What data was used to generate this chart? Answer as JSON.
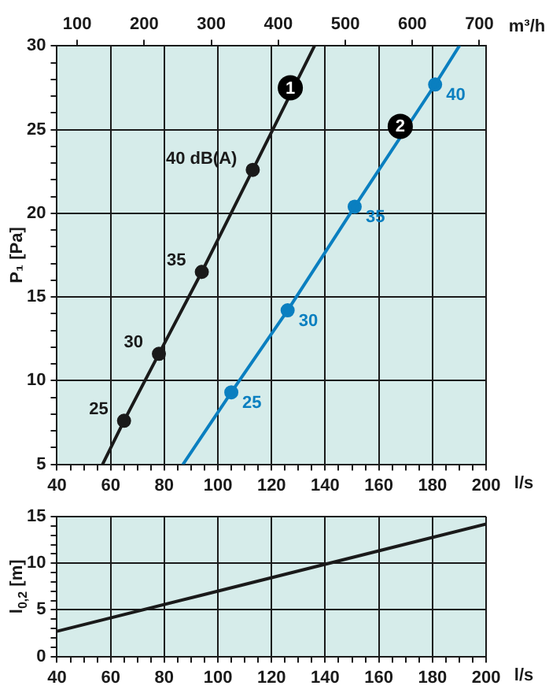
{
  "chart_data": [
    {
      "type": "line",
      "xlabel": "l/s",
      "x2label": "m³/h",
      "ylabel": "P₁ [Pa]",
      "xlim": [
        40,
        200
      ],
      "ylim": [
        5,
        30
      ],
      "xticks": [
        40,
        {
          "value": 45,
          "label": null
        },
        {
          "value": 50,
          "label": null
        },
        {
          "value": 55,
          "label": null
        },
        60,
        {
          "value": 65,
          "label": null
        },
        {
          "value": 70,
          "label": null
        },
        {
          "value": 75,
          "label": null
        },
        80,
        {
          "value": 85,
          "label": null
        },
        {
          "value": 90,
          "label": null
        },
        {
          "value": 95,
          "label": null
        },
        100,
        {
          "value": 105,
          "label": null
        },
        {
          "value": 110,
          "label": null
        },
        {
          "value": 115,
          "label": null
        },
        120,
        {
          "value": 125,
          "label": null
        },
        {
          "value": 130,
          "label": null
        },
        {
          "value": 135,
          "label": null
        },
        140,
        {
          "value": 145,
          "label": null
        },
        {
          "value": 150,
          "label": null
        },
        {
          "value": 155,
          "label": null
        },
        160,
        {
          "value": 165,
          "label": null
        },
        {
          "value": 170,
          "label": null
        },
        {
          "value": 175,
          "label": null
        },
        180,
        {
          "value": 185,
          "label": null
        },
        {
          "value": 190,
          "label": null
        },
        {
          "value": 195,
          "label": null
        },
        200
      ],
      "yticks": [
        5,
        {
          "value": 6,
          "label": null
        },
        {
          "value": 7,
          "label": null
        },
        {
          "value": 8,
          "label": null
        },
        {
          "value": 9,
          "label": null
        },
        10,
        {
          "value": 11,
          "label": null
        },
        {
          "value": 12,
          "label": null
        },
        {
          "value": 13,
          "label": null
        },
        {
          "value": 14,
          "label": null
        },
        15,
        {
          "value": 16,
          "label": null
        },
        {
          "value": 17,
          "label": null
        },
        {
          "value": 18,
          "label": null
        },
        {
          "value": 19,
          "label": null
        },
        20,
        {
          "value": 21,
          "label": null
        },
        {
          "value": 22,
          "label": null
        },
        {
          "value": 23,
          "label": null
        },
        {
          "value": 24,
          "label": null
        },
        25,
        {
          "value": 26,
          "label": null
        },
        {
          "value": 27,
          "label": null
        },
        {
          "value": 28,
          "label": null
        },
        {
          "value": 29,
          "label": null
        },
        30
      ],
      "x2lim": [
        70,
        710
      ],
      "x2ticks": [
        100,
        200,
        300,
        400,
        500,
        600,
        700
      ],
      "grid": true,
      "series": [
        {
          "color": "#1a1a1a",
          "marker": "none",
          "x": [
            57,
            65,
            78,
            94,
            113,
            136
          ],
          "values": [
            5,
            7.6,
            11.6,
            16.5,
            22.6,
            30
          ]
        },
        {
          "color": "#0a7fc0",
          "marker": "none",
          "x": [
            87,
            105,
            126,
            151,
            181,
            190
          ],
          "values": [
            5,
            9.3,
            14.2,
            20.4,
            27.7,
            30
          ]
        },
        {
          "type": "scatter",
          "marker": "circle",
          "color": "#1a1a1a",
          "x": [
            65,
            78,
            94,
            113
          ],
          "values": [
            7.6,
            11.6,
            16.5,
            22.6
          ]
        },
        {
          "type": "scatter",
          "marker": "circle",
          "color": "#0a7fc0",
          "x": [
            105,
            126,
            151,
            181
          ],
          "values": [
            9.3,
            14.2,
            20.4,
            27.7
          ]
        }
      ],
      "annotations": [
        {
          "text": "25",
          "x": 65,
          "y": 7.6
        },
        {
          "text": "30",
          "x": 78,
          "y": 11.6
        },
        {
          "text": "35",
          "x": 94,
          "y": 16.5
        },
        {
          "text": "40 dB(A)",
          "x": 113,
          "y": 22.6
        },
        {
          "text": "25",
          "x": 105,
          "y": 9.3
        },
        {
          "text": "30",
          "x": 126,
          "y": 14.2
        },
        {
          "text": "35",
          "x": 151,
          "y": 20.4
        },
        {
          "text": "40",
          "x": 181,
          "y": 27.7
        },
        {
          "text": "1",
          "x": 127,
          "y": 27.5
        },
        {
          "text": "2",
          "x": 168,
          "y": 25.2
        }
      ]
    },
    {
      "type": "line",
      "xlabel": "l/s",
      "ylabel": "l$_{0,2}$ [m]",
      "xlim": [
        40,
        200
      ],
      "ylim": [
        0,
        15
      ],
      "xticks": [
        40,
        {
          "value": 45,
          "label": null
        },
        {
          "value": 50,
          "label": null
        },
        {
          "value": 55,
          "label": null
        },
        60,
        {
          "value": 65,
          "label": null
        },
        {
          "value": 70,
          "label": null
        },
        {
          "value": 75,
          "label": null
        },
        80,
        {
          "value": 85,
          "label": null
        },
        {
          "value": 90,
          "label": null
        },
        {
          "value": 95,
          "label": null
        },
        100,
        {
          "value": 105,
          "label": null
        },
        {
          "value": 110,
          "label": null
        },
        {
          "value": 115,
          "label": null
        },
        120,
        {
          "value": 125,
          "label": null
        },
        {
          "value": 130,
          "label": null
        },
        {
          "value": 135,
          "label": null
        },
        140,
        {
          "value": 145,
          "label": null
        },
        {
          "value": 150,
          "label": null
        },
        {
          "value": 155,
          "label": null
        },
        160,
        {
          "value": 165,
          "label": null
        },
        {
          "value": 170,
          "label": null
        },
        {
          "value": 175,
          "label": null
        },
        180,
        {
          "value": 185,
          "label": null
        },
        {
          "value": 190,
          "label": null
        },
        {
          "value": 195,
          "label": null
        },
        200
      ],
      "yticks": [
        0,
        {
          "value": 1,
          "label": null
        },
        {
          "value": 2,
          "label": null
        },
        {
          "value": 3,
          "label": null
        },
        {
          "value": 4,
          "label": null
        },
        5,
        {
          "value": 6,
          "label": null
        },
        {
          "value": 7,
          "label": null
        },
        {
          "value": 8,
          "label": null
        },
        {
          "value": 9,
          "label": null
        },
        10,
        {
          "value": 11,
          "label": null
        },
        {
          "value": 12,
          "label": null
        },
        {
          "value": 13,
          "label": null
        },
        {
          "value": 14,
          "label": null
        },
        15
      ],
      "grid": true,
      "series": [
        {
          "color": "#1a1a1a",
          "x": [
            40,
            200
          ],
          "values": [
            2.7,
            14.2
          ]
        }
      ]
    }
  ]
}
